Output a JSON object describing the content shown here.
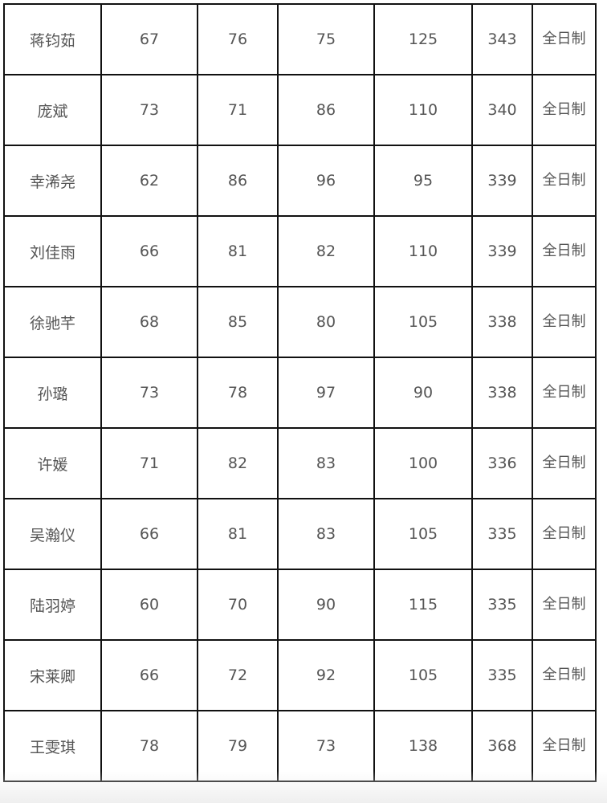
{
  "rows": [
    {
      "name": "蒋钧茹",
      "s1": "67",
      "s2": "76",
      "s3": "75",
      "s4": "125",
      "total": "343",
      "type": "全日制"
    },
    {
      "name": "庞斌",
      "s1": "73",
      "s2": "71",
      "s3": "86",
      "s4": "110",
      "total": "340",
      "type": "全日制"
    },
    {
      "name": "幸浠尧",
      "s1": "62",
      "s2": "86",
      "s3": "96",
      "s4": "95",
      "total": "339",
      "type": "全日制"
    },
    {
      "name": "刘佳雨",
      "s1": "66",
      "s2": "81",
      "s3": "82",
      "s4": "110",
      "total": "339",
      "type": "全日制"
    },
    {
      "name": "徐驰芊",
      "s1": "68",
      "s2": "85",
      "s3": "80",
      "s4": "105",
      "total": "338",
      "type": "全日制"
    },
    {
      "name": "孙璐",
      "s1": "73",
      "s2": "78",
      "s3": "97",
      "s4": "90",
      "total": "338",
      "type": "全日制"
    },
    {
      "name": "许媛",
      "s1": "71",
      "s2": "82",
      "s3": "83",
      "s4": "100",
      "total": "336",
      "type": "全日制"
    },
    {
      "name": "吴瀚仪",
      "s1": "66",
      "s2": "81",
      "s3": "83",
      "s4": "105",
      "total": "335",
      "type": "全日制"
    },
    {
      "name": "陆羽婷",
      "s1": "60",
      "s2": "70",
      "s3": "90",
      "s4": "115",
      "total": "335",
      "type": "全日制"
    },
    {
      "name": "宋莱卿",
      "s1": "66",
      "s2": "72",
      "s3": "92",
      "s4": "105",
      "total": "335",
      "type": "全日制"
    },
    {
      "name": "王雯琪",
      "s1": "78",
      "s2": "79",
      "s3": "73",
      "s4": "138",
      "total": "368",
      "type": "全日制"
    }
  ]
}
